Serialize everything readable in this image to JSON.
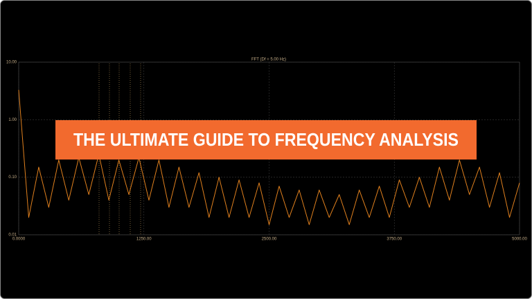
{
  "chart_data": {
    "type": "line",
    "title": "FFT (Df = 5.00 Hz)",
    "banner": "THE ULTIMATE GUIDE TO FREQUENCY ANALYSIS",
    "x": [
      0,
      100,
      200,
      300,
      400,
      500,
      600,
      700,
      800,
      900,
      1000,
      1100,
      1200,
      1300,
      1400,
      1500,
      1600,
      1700,
      1800,
      1900,
      2000,
      2100,
      2200,
      2300,
      2400,
      2500,
      2600,
      2700,
      2800,
      2900,
      3000,
      3100,
      3200,
      3300,
      3400,
      3500,
      3600,
      3700,
      3800,
      3900,
      4000,
      4100,
      4200,
      4300,
      4400,
      4500,
      4600,
      4700,
      4800,
      4900,
      5000
    ],
    "series": [
      {
        "color": "#e0801e",
        "values": [
          3.3,
          0.02,
          0.15,
          0.03,
          0.2,
          0.04,
          0.22,
          0.05,
          0.25,
          0.04,
          0.2,
          0.05,
          0.22,
          0.04,
          0.2,
          0.03,
          0.15,
          0.03,
          0.12,
          0.02,
          0.1,
          0.02,
          0.09,
          0.02,
          0.08,
          0.015,
          0.07,
          0.02,
          0.06,
          0.015,
          0.06,
          0.02,
          0.05,
          0.015,
          0.06,
          0.02,
          0.07,
          0.02,
          0.09,
          0.03,
          0.1,
          0.03,
          0.15,
          0.04,
          0.2,
          0.05,
          0.15,
          0.03,
          0.12,
          0.02,
          0.08
        ]
      }
    ],
    "xlim": [
      0,
      5000
    ],
    "ylim": [
      0.01,
      10
    ],
    "log_y": true,
    "grid": true,
    "xticks": [
      {
        "value": 0,
        "label": "0.0000"
      },
      {
        "value": 1250,
        "label": "1250.00"
      },
      {
        "value": 2500,
        "label": "2500.00"
      },
      {
        "value": 3750,
        "label": "3750.00"
      },
      {
        "value": 5000,
        "label": "5000.00"
      }
    ],
    "yticks": [
      0.01,
      {
        "value": 0.1,
        "label": "0.10"
      },
      {
        "value": 1,
        "label": "1.00"
      },
      {
        "value": 10,
        "label": "10.00"
      }
    ]
  }
}
